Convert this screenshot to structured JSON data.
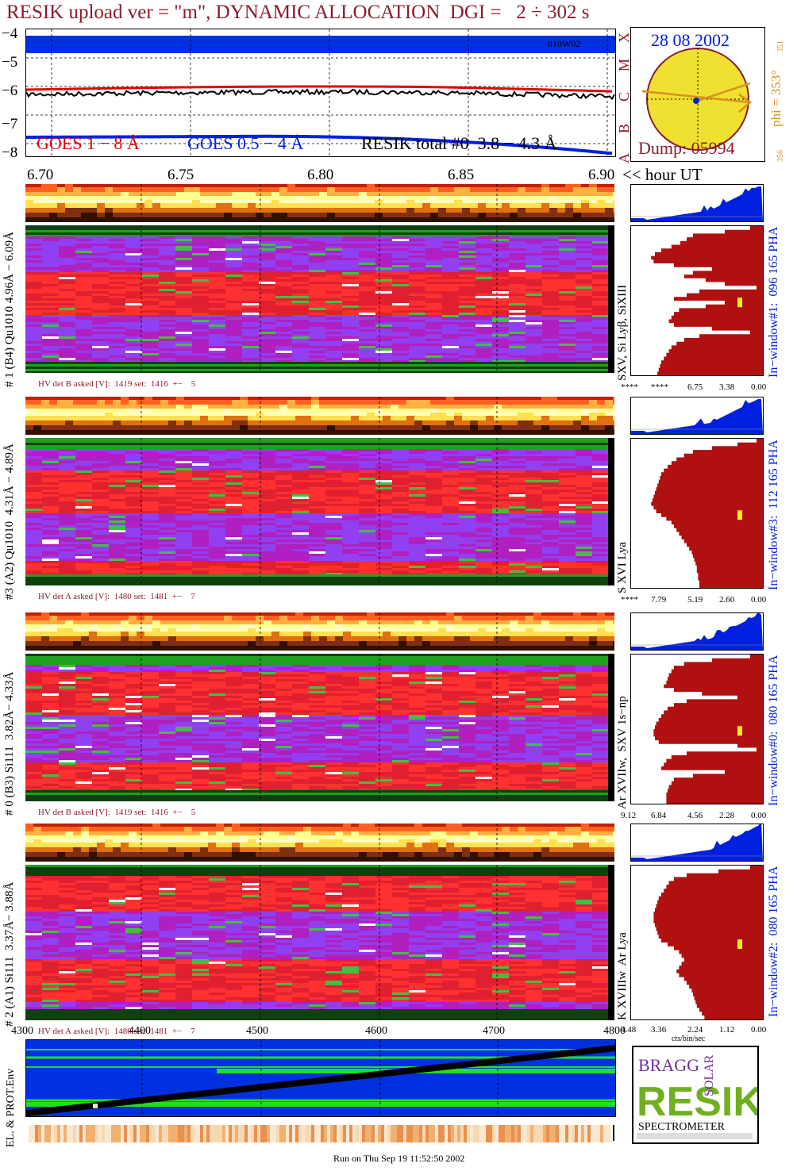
{
  "title": "RESIK upload ver = \"m\", DYNAMIC ALLOCATION  DGI =   2 ÷ 302 s",
  "goes": {
    "y_ticks": [
      "−4",
      "−5",
      "−6",
      "−7",
      "−8"
    ],
    "flare_class_letters": [
      "X",
      "M",
      "C",
      "B",
      "A"
    ],
    "marker": "810W02",
    "legend_goes18": "GOES 1 − 8 Å",
    "legend_goes054": "GOES 0.5 − 4 Å",
    "legend_resik": "RESIK total #0  3.8 − 4.3 Å",
    "colors": {
      "goes18": "#e00000",
      "goes054": "#0020e0",
      "resik": "#000000",
      "band": "#0030e0"
    }
  },
  "sun": {
    "date": "28 08 2002",
    "dump": "Dump: 05994",
    "phi": "phi = 353°",
    "phi_top": "351",
    "phi_bottom": "356",
    "disk_color": "#f0e030"
  },
  "time_axis": {
    "ticks": [
      "6.70",
      "6.75",
      "6.80",
      "6.85",
      "6.90"
    ],
    "unit_label": "<< hour UT"
  },
  "channels": [
    {
      "side_label": "# 1 (B4) Qu1010 4.96Å − 6.09Å",
      "lines_label": "SXV, Si Lyβ, SiXIII",
      "hv": "HV det B asked [V]:  1419 set:  1416  +−    5",
      "window_label": "In−window#1:  096 165 PHA",
      "scale": [
        "****",
        "****",
        "6.75",
        "3.38",
        "0.00"
      ],
      "profile": [
        0.1,
        0.3,
        0.55,
        0.6,
        0.65,
        0.72,
        0.8,
        0.85,
        0.88,
        0.86,
        0.7,
        0.4,
        0.55,
        0.62,
        0.45,
        0.3,
        0.05,
        0.5,
        0.6,
        0.7,
        0.3,
        0.45,
        0.66,
        0.7,
        0.72,
        0.74,
        0.7,
        0.4,
        0.1,
        0.5,
        0.62,
        0.68,
        0.72,
        0.74,
        0.76,
        0.78,
        0.8,
        0.81,
        0.82,
        0.83
      ]
    },
    {
      "side_label": "#3 (A2) Qu1010  4.31Å − 4.89Å",
      "lines_label": "S XVI Lya",
      "hv": "HV det A asked [V]:  1480 set:  1481  +−    7",
      "window_label": "In−window#3:  112 165 PHA",
      "scale": [
        "****",
        "7.79",
        "5.19",
        "2.60",
        "0.00"
      ],
      "profile": [
        0.05,
        0.2,
        0.4,
        0.55,
        0.62,
        0.68,
        0.72,
        0.75,
        0.78,
        0.8,
        0.81,
        0.82,
        0.83,
        0.84,
        0.85,
        0.86,
        0.87,
        0.88,
        0.86,
        0.84,
        0.8,
        0.76,
        0.72,
        0.7,
        0.68,
        0.66,
        0.64,
        0.62,
        0.6,
        0.58,
        0.56,
        0.55,
        0.54,
        0.53,
        0.52,
        0.52,
        0.51,
        0.51,
        0.5,
        0.5
      ]
    },
    {
      "side_label": "# 0 (B3) Si111  3.82Å− 4.33Å",
      "lines_label": "Ar XVIIw,  SXV 1s−np",
      "hv": "HV det B asked [V]:  1419 set:  1416  +−    5",
      "window_label": "In−window#0:  080 165 PHA",
      "scale": [
        "9.12",
        "6.84",
        "4.56",
        "2.28",
        "0.00"
      ],
      "profile": [
        0.1,
        0.4,
        0.62,
        0.7,
        0.72,
        0.74,
        0.75,
        0.76,
        0.78,
        0.7,
        0.48,
        0.2,
        0.6,
        0.7,
        0.75,
        0.78,
        0.8,
        0.82,
        0.84,
        0.85,
        0.86,
        0.86,
        0.85,
        0.82,
        0.2,
        0.05,
        0.6,
        0.72,
        0.76,
        0.78,
        0.8,
        0.3,
        0.55,
        0.7,
        0.72,
        0.74,
        0.75,
        0.76,
        0.76,
        0.76
      ]
    },
    {
      "side_label": "# 2 (A1) Si111  3.37Å− 3.88Å",
      "lines_label": "K XVIIIw  Ar Lya",
      "hv": "HV det A asked [V]:  1480 set:  1481  +−    7",
      "window_label": "In−window#2:  080 165 PHA",
      "scale": [
        "4.48",
        "3.36",
        "2.24",
        "1.12",
        "0.00"
      ],
      "profile": [
        0.1,
        0.35,
        0.6,
        0.7,
        0.74,
        0.76,
        0.78,
        0.8,
        0.82,
        0.83,
        0.84,
        0.85,
        0.86,
        0.86,
        0.86,
        0.85,
        0.84,
        0.83,
        0.82,
        0.8,
        0.75,
        0.7,
        0.66,
        0.64,
        0.62,
        0.64,
        0.66,
        0.68,
        0.66,
        0.62,
        0.6,
        0.58,
        0.56,
        0.55,
        0.54,
        0.53,
        0.52,
        0.5,
        0.48,
        0.46
      ]
    }
  ],
  "cts_label": "cts/bin/sec",
  "env": {
    "label": "EL. & PROT.Env",
    "x_ticks": [
      "4300",
      "4400",
      "4500",
      "4600",
      "4700",
      "4800"
    ],
    "colors": {
      "background": "#0030e0",
      "green": "#20e020"
    }
  },
  "logo": {
    "letters": "RESIK",
    "small": [
      "BRAGG",
      "SOLAR"
    ],
    "caption": "SPECTROMETER"
  },
  "footer": "Run on Thu Sep 19 11:52:50 2002"
}
